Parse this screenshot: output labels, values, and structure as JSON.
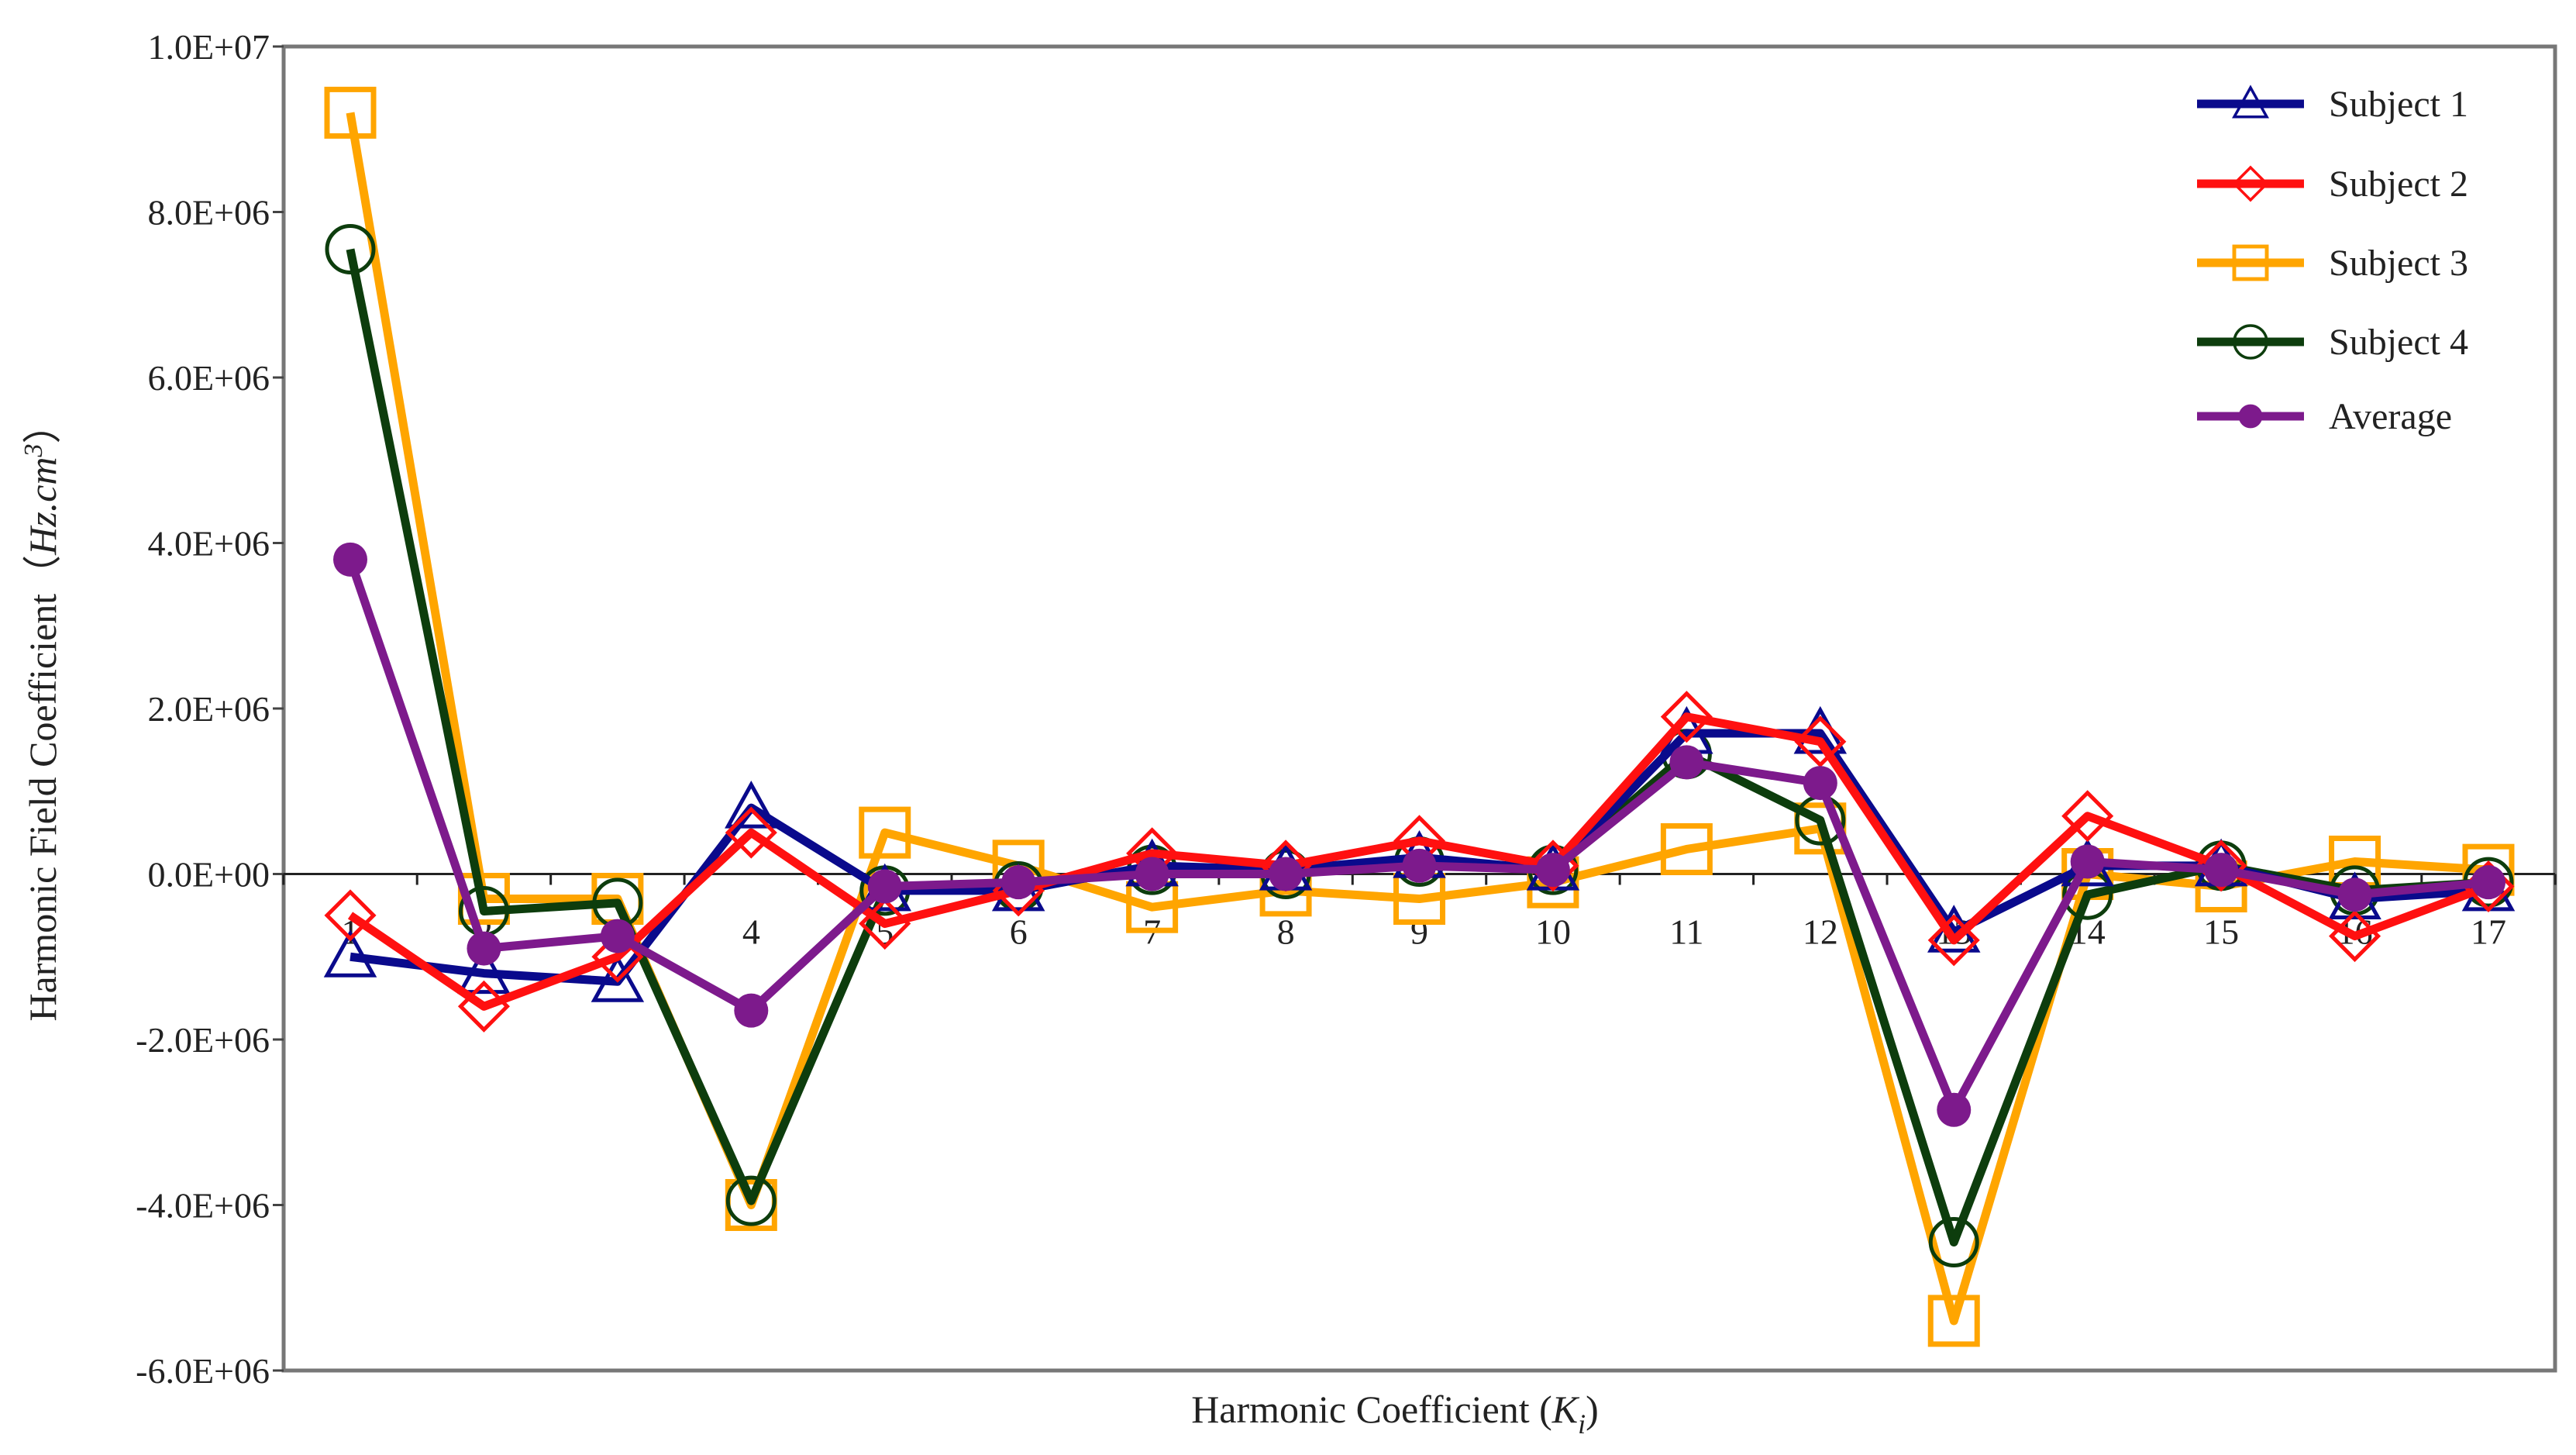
{
  "chart_data": {
    "type": "line",
    "title": "",
    "xlabel": "Harmonic Coefficient (Ki)",
    "xlabel_parts": {
      "text": "Harmonic Coefficient (",
      "var": "K",
      "sub": "i",
      "close": ")"
    },
    "ylabel": "Harmonic Field Coefficient (Hz.cm3)",
    "ylabel_parts": {
      "text": "Harmonic Field Coefficient（",
      "var": "Hz.cm",
      "sup": "3",
      "close": "）"
    },
    "ylim": [
      -6000000,
      10000000
    ],
    "yticks": [
      -6000000,
      -4000000,
      -2000000,
      0,
      2000000,
      4000000,
      6000000,
      8000000,
      10000000
    ],
    "ytick_labels": [
      "-6.0E+06",
      "-4.0E+06",
      "-2.0E+06",
      "0.0E+00",
      "2.0E+06",
      "4.0E+06",
      "6.0E+06",
      "8.0E+06",
      "1.0E+07"
    ],
    "categories": [
      "1",
      "2",
      "3",
      "4",
      "5",
      "6",
      "7",
      "8",
      "9",
      "10",
      "11",
      "12",
      "13",
      "14",
      "15",
      "16",
      "17"
    ],
    "legend_position": "top-right",
    "grid": false,
    "series": [
      {
        "name": "Subject 1",
        "color": "#0a0a8c",
        "marker": "triangle",
        "values": [
          -1000000,
          -1200000,
          -1300000,
          800000,
          -200000,
          -200000,
          100000,
          50000,
          200000,
          50000,
          1700000,
          1700000,
          -700000,
          100000,
          100000,
          -300000,
          -200000
        ]
      },
      {
        "name": "Subject 2",
        "color": "#ff1010",
        "marker": "diamond",
        "values": [
          -500000,
          -1600000,
          -1000000,
          500000,
          -600000,
          -200000,
          250000,
          100000,
          400000,
          100000,
          1900000,
          1600000,
          -800000,
          700000,
          100000,
          -750000,
          -150000
        ]
      },
      {
        "name": "Subject 3",
        "color": "#ffa500",
        "marker": "square",
        "values": [
          9200000,
          -300000,
          -300000,
          -4000000,
          500000,
          100000,
          -400000,
          -200000,
          -300000,
          -100000,
          300000,
          550000,
          -5400000,
          0,
          -150000,
          150000,
          50000
        ]
      },
      {
        "name": "Subject 4",
        "color": "#0d3d0d",
        "marker": "circle-open",
        "values": [
          7550000,
          -450000,
          -350000,
          -3950000,
          -200000,
          -150000,
          50000,
          0,
          150000,
          50000,
          1450000,
          650000,
          -4450000,
          -250000,
          100000,
          -200000,
          -100000
        ]
      },
      {
        "name": "Average",
        "color": "#7d1a8c",
        "marker": "circle-filled",
        "values": [
          3800000,
          -900000,
          -750000,
          -1650000,
          -150000,
          -100000,
          0,
          0,
          100000,
          50000,
          1350000,
          1100000,
          -2850000,
          150000,
          50000,
          -250000,
          -100000
        ]
      }
    ]
  }
}
